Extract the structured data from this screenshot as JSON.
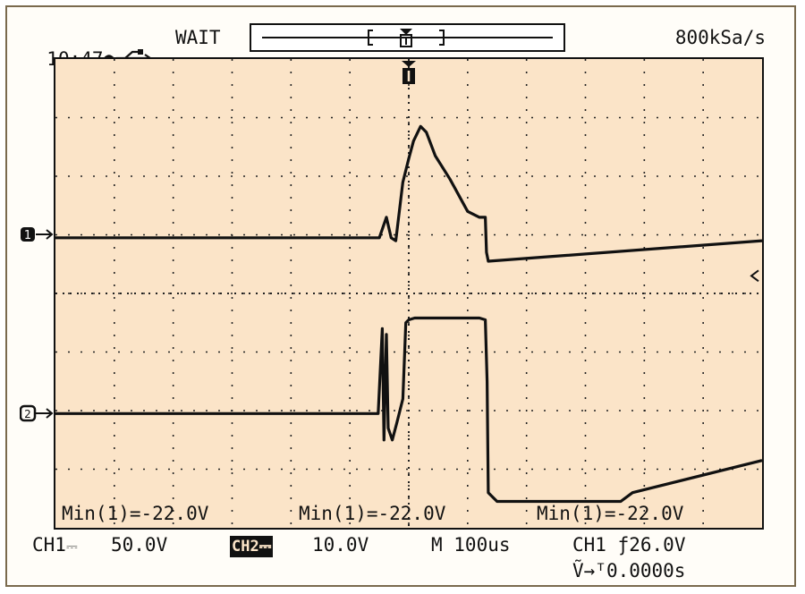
{
  "header": {
    "time": "10:47",
    "usb_icon": "usb-icon",
    "status": "WAIT",
    "sample_rate": "800kSa/s"
  },
  "measurements": [
    {
      "label": "Min(1)=-22.0V"
    },
    {
      "label": "Min(1)=-22.0V"
    },
    {
      "label": "Min(1)=-22.0V"
    }
  ],
  "footer": {
    "ch1_label": "CH1",
    "ch1_coupling_icon": "dc-coupling-icon",
    "ch1_scale": "50.0V",
    "ch2_label": "CH2",
    "ch2_scale": "10.0V",
    "timebase": "M 100us",
    "trigger_source": "CH1",
    "trigger_slope_icon": "falling-edge-icon",
    "trigger_level": "26.0V",
    "trigger_delay": "0.0000s"
  },
  "chart_data": {
    "type": "line",
    "grid": true,
    "divisions": {
      "x": 12,
      "y": 8
    },
    "series": [
      {
        "channel": 1,
        "x_div": [
          0,
          5.5,
          5.62,
          5.7,
          5.78,
          5.9,
          6.0,
          6.08,
          6.2,
          6.3,
          6.45,
          6.7,
          7.0,
          7.2,
          7.3,
          7.32,
          7.35,
          12
        ],
        "y_div": [
          -0.05,
          -0.05,
          0.3,
          -0.05,
          -0.1,
          0.9,
          1.3,
          1.6,
          1.85,
          1.75,
          1.35,
          0.95,
          0.4,
          0.3,
          0.3,
          -0.3,
          -0.45,
          -0.1
        ]
      },
      {
        "channel": 2,
        "x_div": [
          0,
          5.48,
          5.55,
          5.58,
          5.62,
          5.65,
          5.72,
          5.8,
          5.9,
          5.95,
          6.0,
          6.1,
          7.2,
          7.3,
          7.33,
          7.35,
          7.5,
          8.0,
          9.6,
          9.8,
          12
        ],
        "y_div": [
          -0.05,
          -0.05,
          1.4,
          -0.5,
          1.3,
          -0.3,
          -0.5,
          -0.2,
          0.2,
          1.5,
          1.55,
          1.58,
          1.58,
          1.55,
          0.5,
          -1.4,
          -1.55,
          -1.55,
          -1.55,
          -1.4,
          -0.85
        ]
      }
    ]
  }
}
